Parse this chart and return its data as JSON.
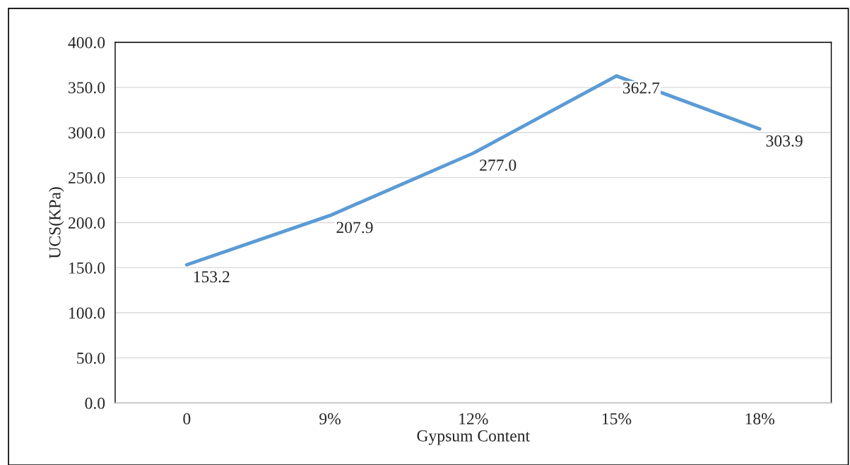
{
  "chart_data": {
    "type": "line",
    "xlabel": "Gypsum Content",
    "ylabel": "UCS(KPa)",
    "categories": [
      "0",
      "9%",
      "12%",
      "15%",
      "18%"
    ],
    "series": [
      {
        "color": "#5b9bd5",
        "values": [
          153.2,
          207.9,
          277.0,
          362.7,
          303.9
        ],
        "value_labels": [
          "153.2",
          "207.9",
          "277.0",
          "362.7",
          "303.9"
        ]
      }
    ],
    "ylim": [
      0,
      400
    ],
    "yticks": [
      {
        "value": 0,
        "label": "0.0"
      },
      {
        "value": 50,
        "label": "50.0"
      },
      {
        "value": 100,
        "label": "100.0"
      },
      {
        "value": 150,
        "label": "150.0"
      },
      {
        "value": 200,
        "label": "200.0"
      },
      {
        "value": 250,
        "label": "250.0"
      },
      {
        "value": 300,
        "label": "300.0"
      },
      {
        "value": 350,
        "label": "350.0"
      },
      {
        "value": 400,
        "label": "400.0"
      }
    ],
    "grid": "y",
    "marker": "none",
    "line_style": "solid"
  }
}
